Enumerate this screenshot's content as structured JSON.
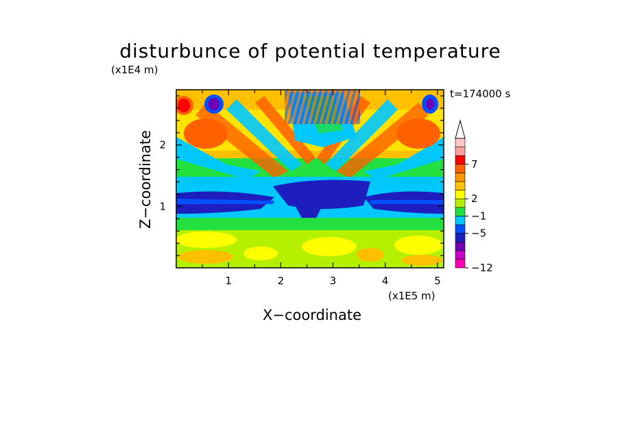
{
  "chart_data": {
    "type": "heatmap",
    "title": "disturbunce of potential temperature",
    "xlabel": "X−coordinate",
    "ylabel": "Z−coordinate",
    "x_unit": "(x1E5 m)",
    "y_unit": "(x1E4 m)",
    "time_label": "t=174000 s",
    "xlim": [
      0,
      5.12
    ],
    "ylim": [
      0,
      2.9
    ],
    "x_ticks": [
      "1",
      "2",
      "3",
      "4",
      "5"
    ],
    "y_ticks": [
      "1",
      "2"
    ],
    "colorbar": {
      "tick_labels": [
        "7",
        "2",
        "−1",
        "−5",
        "−12"
      ],
      "colors": [
        "#ff00b4",
        "#c800c8",
        "#6e00b4",
        "#1e1ebe",
        "#0050ff",
        "#00c8ff",
        "#22e040",
        "#b4f000",
        "#ffff00",
        "#ffc000",
        "#ff9600",
        "#ff6000",
        "#ff0000",
        "#ffa0a0",
        "#ffc8c8"
      ],
      "extend_top": true
    },
    "features": [
      {
        "x": 0.13,
        "z": 2.66,
        "value": 8
      },
      {
        "x": 0.72,
        "z": 2.66,
        "value": -7
      },
      {
        "x": 4.87,
        "z": 2.66,
        "value": -7
      },
      {
        "x": 0.55,
        "z": 2.1,
        "value": 5
      },
      {
        "x": 4.5,
        "z": 2.1,
        "value": 5
      },
      {
        "x": 1.3,
        "z": 1.1,
        "value": -4
      },
      {
        "x": 4.3,
        "z": 1.1,
        "value": -4
      },
      {
        "x": 2.7,
        "z": 1.2,
        "value": -5
      },
      {
        "x": 2.9,
        "z": 2.4,
        "value": -1
      },
      {
        "x": 2.6,
        "z": 0.3,
        "value": 2
      }
    ]
  }
}
